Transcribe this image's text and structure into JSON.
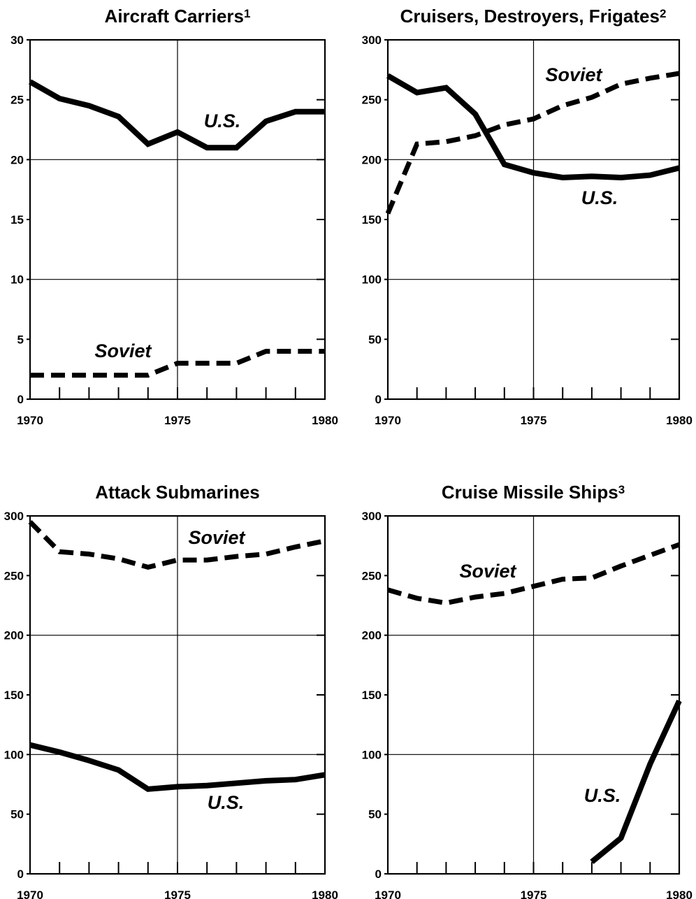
{
  "chart_data": [
    {
      "type": "line",
      "title": "Aircraft Carriers",
      "title_note": "1",
      "xlim": [
        1970,
        1980
      ],
      "ylim": [
        0,
        30
      ],
      "x_ticks": [
        "1970",
        "1975",
        "1980"
      ],
      "y_ticks": [
        "0",
        "5",
        "10",
        "15",
        "20",
        "25",
        "30"
      ],
      "x": [
        1970,
        1971,
        1972,
        1973,
        1974,
        1975,
        1976,
        1977,
        1978,
        1979,
        1980
      ],
      "series": [
        {
          "name": "U.S.",
          "style": "solid",
          "values": [
            26.5,
            25.1,
            24.5,
            23.6,
            21.3,
            22.3,
            21.0,
            21.0,
            23.2,
            24.0,
            24.0
          ]
        },
        {
          "name": "Soviet",
          "style": "dashed",
          "values": [
            2,
            2,
            2,
            2,
            2,
            3,
            3,
            3,
            4,
            4,
            4
          ]
        }
      ],
      "grid": true
    },
    {
      "type": "line",
      "title": "Cruisers, Destroyers, Frigates",
      "title_note": "2",
      "xlim": [
        1970,
        1980
      ],
      "ylim": [
        0,
        300
      ],
      "x_ticks": [
        "1970",
        "1975",
        "1980"
      ],
      "y_ticks": [
        "0",
        "50",
        "100",
        "150",
        "200",
        "250",
        "300"
      ],
      "x": [
        1970,
        1971,
        1972,
        1973,
        1974,
        1975,
        1976,
        1977,
        1978,
        1979,
        1980
      ],
      "series": [
        {
          "name": "U.S.",
          "style": "solid",
          "values": [
            270,
            256,
            260,
            238,
            196,
            189,
            185,
            186,
            185,
            187,
            193
          ]
        },
        {
          "name": "Soviet",
          "style": "dashed",
          "values": [
            155,
            213,
            215,
            220,
            229,
            234,
            245,
            252,
            263,
            268,
            272
          ]
        }
      ],
      "grid": true
    },
    {
      "type": "line",
      "title": "Attack Submarines",
      "xlim": [
        1970,
        1980
      ],
      "ylim": [
        0,
        300
      ],
      "x_ticks": [
        "1970",
        "1975",
        "1980"
      ],
      "y_ticks": [
        "0",
        "50",
        "100",
        "150",
        "200",
        "250",
        "300"
      ],
      "x": [
        1970,
        1971,
        1972,
        1973,
        1974,
        1975,
        1976,
        1977,
        1978,
        1979,
        1980
      ],
      "series": [
        {
          "name": "U.S.",
          "style": "solid",
          "values": [
            108,
            102,
            95,
            87,
            71,
            73,
            74,
            76,
            78,
            79,
            83
          ]
        },
        {
          "name": "Soviet",
          "style": "dashed",
          "values": [
            295,
            270,
            268,
            264,
            257,
            263,
            263,
            266,
            268,
            274,
            279
          ]
        }
      ],
      "grid": true
    },
    {
      "type": "line",
      "title": "Cruise Missile Ships",
      "title_note": "3",
      "xlim": [
        1970,
        1980
      ],
      "ylim": [
        0,
        300
      ],
      "x_ticks": [
        "1970",
        "1975",
        "1980"
      ],
      "y_ticks": [
        "0",
        "50",
        "100",
        "150",
        "200",
        "250",
        "300"
      ],
      "x": [
        1970,
        1971,
        1972,
        1973,
        1974,
        1975,
        1976,
        1977,
        1978,
        1979,
        1980
      ],
      "series": [
        {
          "name": "U.S.",
          "style": "solid",
          "values": [
            null,
            null,
            null,
            null,
            null,
            null,
            null,
            10,
            30,
            92,
            145
          ]
        },
        {
          "name": "Soviet",
          "style": "dashed",
          "values": [
            238,
            231,
            227,
            232,
            235,
            241,
            247,
            248,
            258,
            267,
            276
          ]
        }
      ],
      "grid": true
    }
  ]
}
